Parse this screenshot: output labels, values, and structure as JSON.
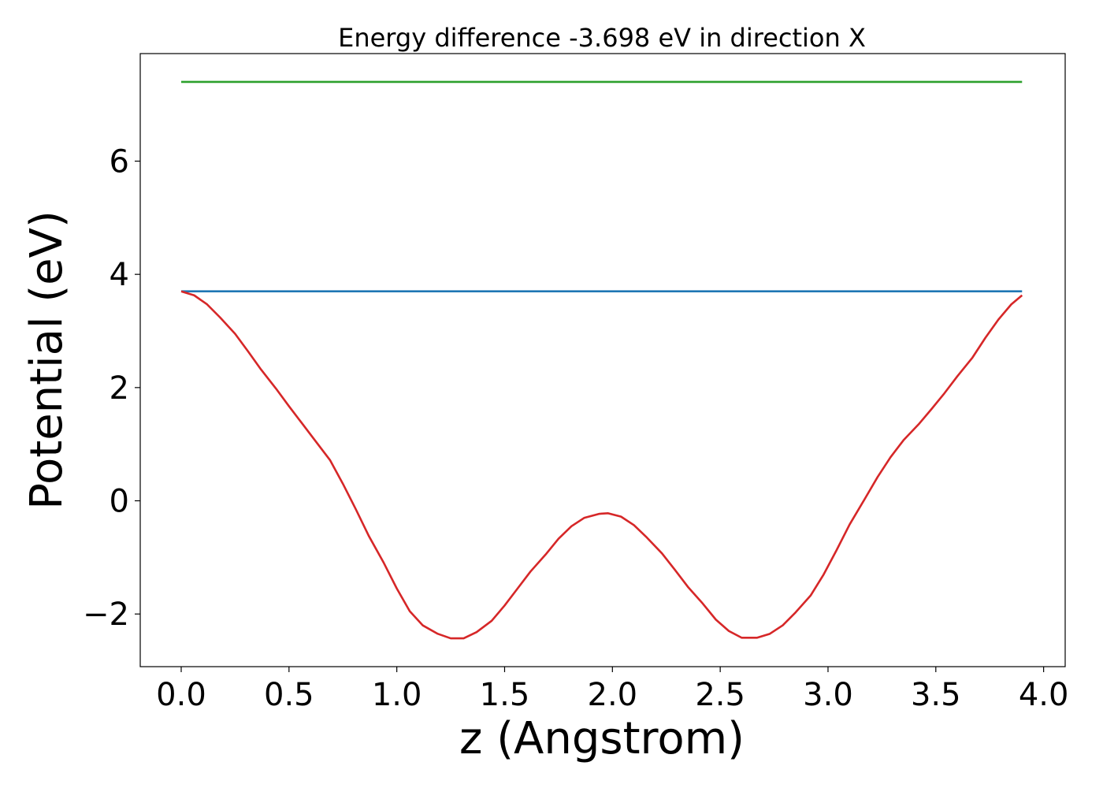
{
  "chart_data": {
    "type": "line",
    "title": "Energy difference -3.698 eV in direction X",
    "xlabel": "z (Angstrom)",
    "ylabel": "Potential (eV)",
    "xlim": [
      -0.19,
      4.1
    ],
    "ylim": [
      -2.93,
      7.9
    ],
    "xticks": [
      0.0,
      0.5,
      1.0,
      1.5,
      2.0,
      2.5,
      3.0,
      3.5,
      4.0
    ],
    "xtick_labels": [
      "0.0",
      "0.5",
      "1.0",
      "1.5",
      "2.0",
      "2.5",
      "3.0",
      "3.5",
      "4.0"
    ],
    "yticks": [
      -2,
      0,
      2,
      4,
      6
    ],
    "ytick_labels": [
      "−2",
      "0",
      "2",
      "4",
      "6"
    ],
    "grid": false,
    "legend": "none",
    "series": [
      {
        "color": "#2ca02c",
        "x": [
          0.0,
          3.9
        ],
        "y": [
          7.4,
          7.4
        ]
      },
      {
        "color": "#1f77b4",
        "x": [
          0.0,
          3.9
        ],
        "y": [
          3.7,
          3.7
        ]
      },
      {
        "color": "#d62728",
        "x": [
          0.0,
          0.06,
          0.12,
          0.18,
          0.25,
          0.31,
          0.37,
          0.44,
          0.5,
          0.56,
          0.62,
          0.69,
          0.75,
          0.81,
          0.87,
          0.94,
          1.0,
          1.06,
          1.12,
          1.19,
          1.25,
          1.31,
          1.37,
          1.44,
          1.5,
          1.56,
          1.62,
          1.69,
          1.75,
          1.81,
          1.87,
          1.94,
          1.98,
          2.04,
          2.1,
          2.16,
          2.23,
          2.29,
          2.35,
          2.42,
          2.48,
          2.54,
          2.6,
          2.67,
          2.73,
          2.79,
          2.85,
          2.92,
          2.98,
          3.04,
          3.1,
          3.17,
          3.23,
          3.29,
          3.35,
          3.42,
          3.48,
          3.54,
          3.6,
          3.67,
          3.73,
          3.79,
          3.85,
          3.9
        ],
        "y": [
          3.7,
          3.63,
          3.47,
          3.24,
          2.95,
          2.64,
          2.32,
          1.98,
          1.67,
          1.37,
          1.07,
          0.72,
          0.3,
          -0.15,
          -0.62,
          -1.1,
          -1.55,
          -1.95,
          -2.2,
          -2.35,
          -2.43,
          -2.43,
          -2.32,
          -2.12,
          -1.85,
          -1.55,
          -1.25,
          -0.95,
          -0.67,
          -0.45,
          -0.3,
          -0.23,
          -0.22,
          -0.28,
          -0.43,
          -0.65,
          -0.93,
          -1.22,
          -1.52,
          -1.82,
          -2.1,
          -2.3,
          -2.42,
          -2.42,
          -2.35,
          -2.2,
          -1.97,
          -1.67,
          -1.3,
          -0.87,
          -0.42,
          0.03,
          0.42,
          0.77,
          1.07,
          1.35,
          1.62,
          1.9,
          2.2,
          2.53,
          2.88,
          3.2,
          3.47,
          3.63
        ]
      }
    ]
  }
}
